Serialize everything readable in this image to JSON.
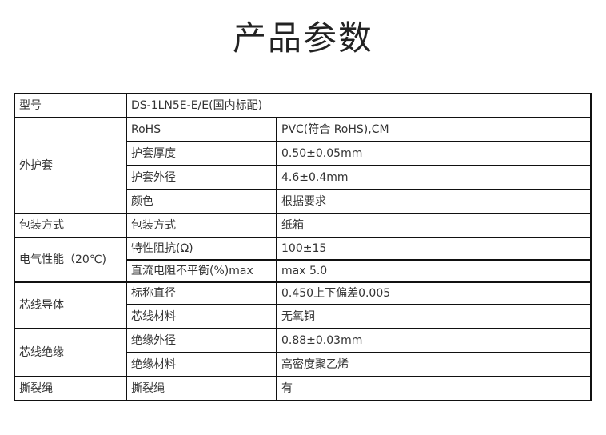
{
  "title": "产品参数",
  "rows": [
    {
      "group": "型号",
      "value": "DS-1LN5E-E/E(国内标配)"
    },
    {
      "group": "外护套",
      "items": [
        {
          "param": "RoHS",
          "value": "PVC(符合 RoHS),CM"
        },
        {
          "param": "护套厚度",
          "value": "0.50±0.05mm"
        },
        {
          "param": "护套外径",
          "value": "4.6±0.4mm"
        },
        {
          "param": "颜色",
          "value": "根据要求"
        }
      ]
    },
    {
      "group": "包装方式",
      "items": [
        {
          "param": "包装方式",
          "value": "纸箱"
        }
      ]
    },
    {
      "group": "电气性能（20℃)",
      "items": [
        {
          "param": "特性阻抗(Ω)",
          "value": "100±15"
        },
        {
          "param": "直流电阻不平衡(%)max",
          "value": "max 5.0"
        }
      ]
    },
    {
      "group": "芯线导体",
      "items": [
        {
          "param": "标称直径",
          "value": "0.450上下偏差0.005"
        },
        {
          "param": "芯线材料",
          "value": "无氧铜"
        }
      ]
    },
    {
      "group": "芯线绝缘",
      "items": [
        {
          "param": "绝缘外径",
          "value": "0.88±0.03mm"
        },
        {
          "param": "绝缘材料",
          "value": "高密度聚乙烯"
        }
      ]
    },
    {
      "group": "撕裂绳",
      "items": [
        {
          "param": "撕裂绳",
          "value": "有"
        }
      ]
    }
  ]
}
